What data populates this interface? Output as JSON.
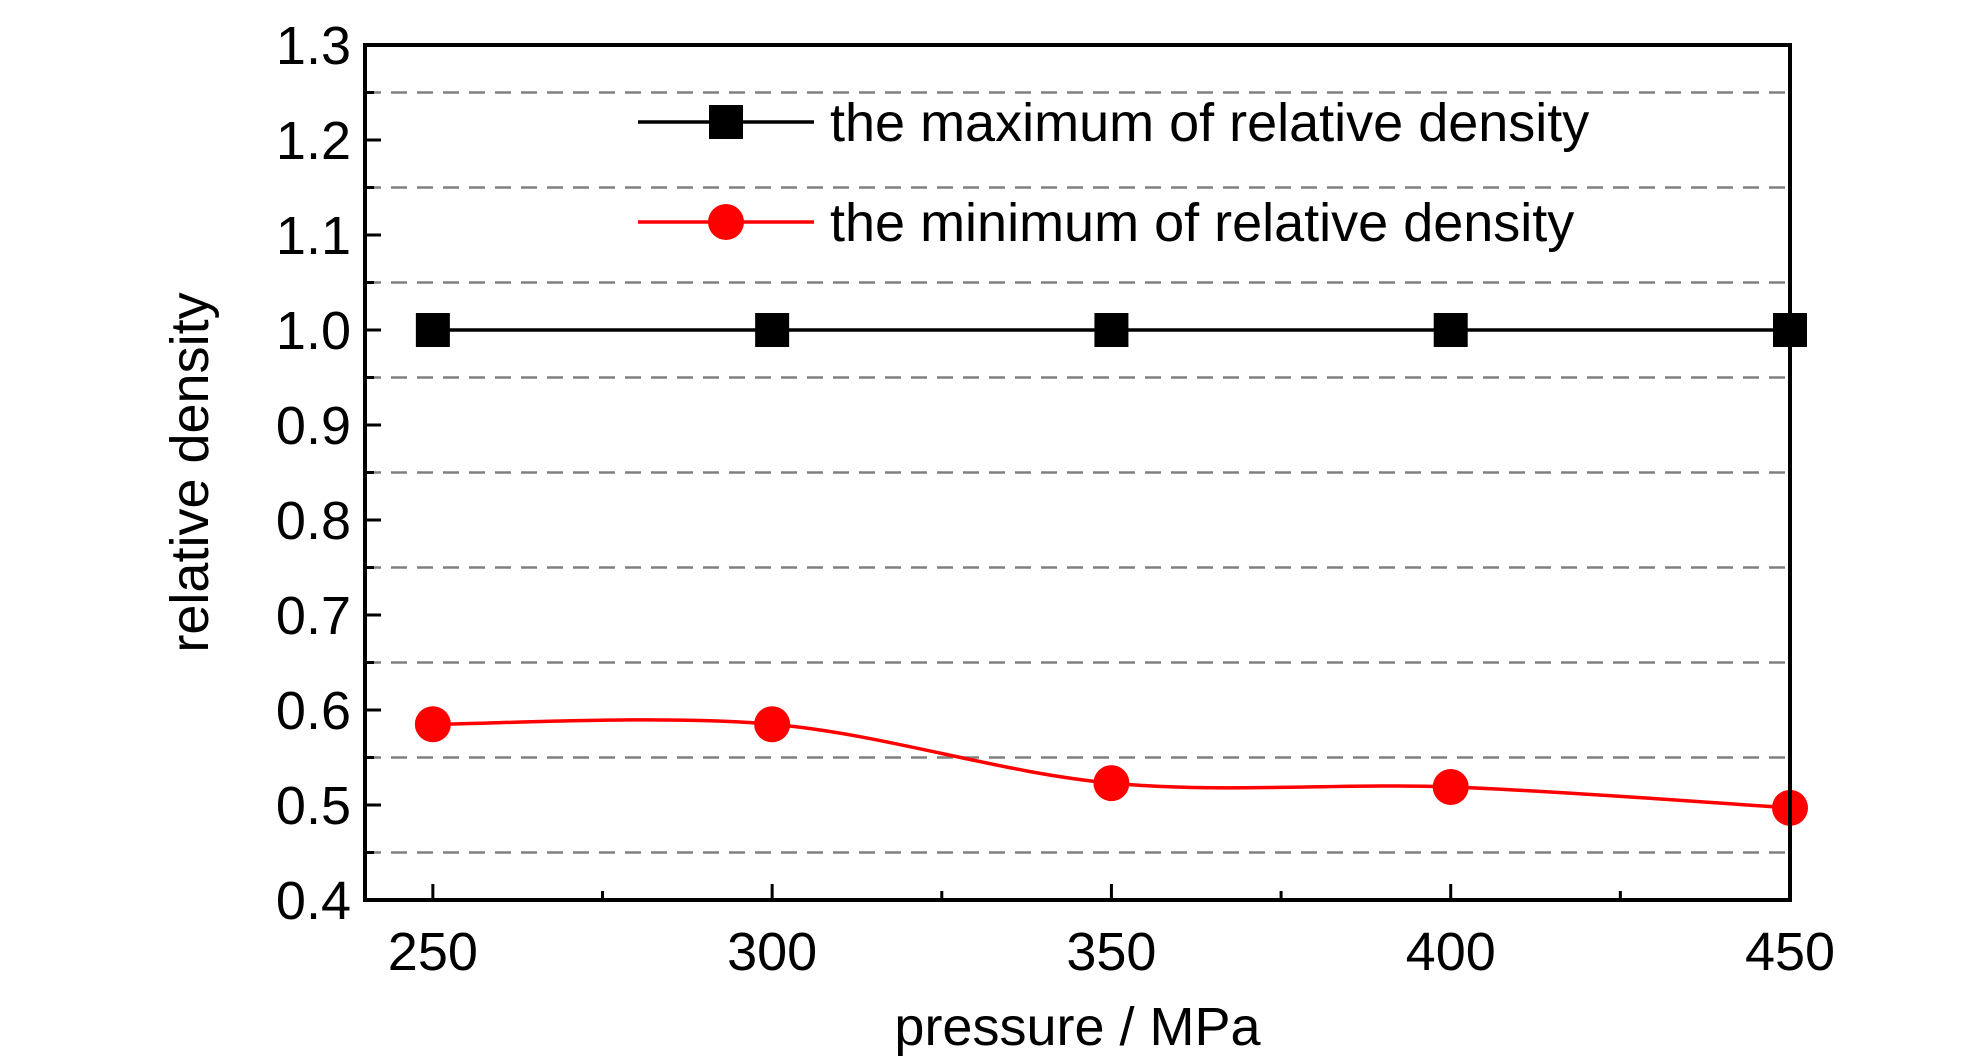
{
  "chart_data": {
    "type": "line",
    "xlabel": "pressure / MPa",
    "ylabel": "relative density",
    "xlim": [
      240,
      450
    ],
    "ylim": [
      0.4,
      1.3
    ],
    "x_ticks": [
      250,
      300,
      350,
      400,
      450
    ],
    "x_tick_labels": [
      "250",
      "300",
      "350",
      "400",
      "450"
    ],
    "y_ticks": [
      0.4,
      0.5,
      0.6,
      0.7,
      0.8,
      0.9,
      1.0,
      1.1,
      1.2,
      1.3
    ],
    "y_tick_labels": [
      "0.4",
      "0.5",
      "0.6",
      "0.7",
      "0.8",
      "0.9",
      "1.0",
      "1.1",
      "1.2",
      "1.3"
    ],
    "grid": "horizontal dashed at half-steps",
    "gridlines_y": [
      0.45,
      0.55,
      0.65,
      0.75,
      0.85,
      0.95,
      1.05,
      1.15,
      1.25
    ],
    "legend_position": "top-center",
    "x": [
      250,
      300,
      350,
      400,
      450
    ],
    "series": [
      {
        "name": "the maximum of relative density",
        "values": [
          1.0,
          1.0,
          1.0,
          1.0,
          1.0
        ],
        "color": "#000000",
        "marker": "square",
        "smooth": false
      },
      {
        "name": "the minimum of relative density",
        "values": [
          0.585,
          0.585,
          0.523,
          0.519,
          0.497
        ],
        "color": "#ff0000",
        "marker": "circle",
        "smooth": true
      }
    ]
  }
}
